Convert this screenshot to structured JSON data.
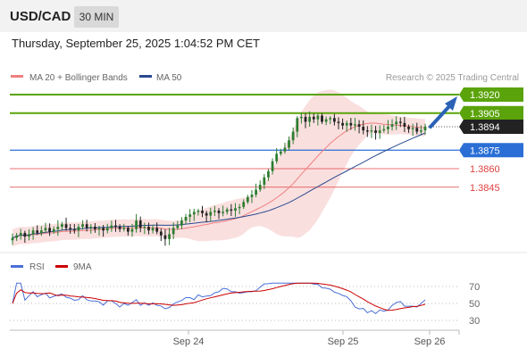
{
  "header": {
    "pair": "USD/CAD",
    "timeframe": "30 MIN"
  },
  "timestamp": "Thursday, September 25, 2025 1:04:52 PM CET",
  "legend": {
    "ma20": "MA 20 + Bollinger Bands",
    "ma50": "MA 50",
    "credit": "Research © 2025 Trading Central"
  },
  "colors": {
    "bull": "#2e7d32",
    "bear": "#222222",
    "ma20": "#f08080",
    "ma50": "#2a4a8f",
    "bb_fill": "#f9d9d9",
    "target": "#5aa30a",
    "support": "#2b6fd6",
    "resistance": "#e04040",
    "rsi": "#4a6fd6",
    "rsi_ma": "#cc0000"
  },
  "chart_data": [
    {
      "type": "candlestick",
      "title": "",
      "x_ticks": [
        "Sep 24",
        "Sep 25",
        "Sep 26"
      ],
      "y_range": [
        1.3775,
        1.3935
      ],
      "closes": [
        1.3804,
        1.3806,
        1.3808,
        1.3805,
        1.3807,
        1.381,
        1.3808,
        1.381,
        1.3812,
        1.3809,
        1.3811,
        1.3813,
        1.3815,
        1.3812,
        1.3811,
        1.381,
        1.3813,
        1.3815,
        1.3812,
        1.3813,
        1.3811,
        1.3812,
        1.381,
        1.3812,
        1.3814,
        1.3813,
        1.3811,
        1.3812,
        1.3809,
        1.3811,
        1.3818,
        1.3812,
        1.3813,
        1.381,
        1.3812,
        1.3809,
        1.3806,
        1.3803,
        1.3807,
        1.3812,
        1.3814,
        1.3818,
        1.3821,
        1.3823,
        1.3825,
        1.3826,
        1.3824,
        1.3822,
        1.3825,
        1.3826,
        1.3824,
        1.3825,
        1.3827,
        1.3826,
        1.3828,
        1.3829,
        1.3833,
        1.3837,
        1.3839,
        1.3843,
        1.3847,
        1.3853,
        1.3858,
        1.3866,
        1.3872,
        1.3874,
        1.3877,
        1.3883,
        1.389,
        1.3901,
        1.3902,
        1.3898,
        1.3902,
        1.39,
        1.3903,
        1.3898,
        1.39,
        1.3901,
        1.3898,
        1.3897,
        1.3895,
        1.3897,
        1.3895,
        1.3896,
        1.3894,
        1.3891,
        1.389,
        1.3891,
        1.3889,
        1.3891,
        1.3892,
        1.3894,
        1.3896,
        1.3898,
        1.3897,
        1.3894,
        1.3892,
        1.3893,
        1.389,
        1.3891,
        1.3894
      ],
      "ma20_end": 1.3892,
      "ma50_end": 1.3889,
      "current_price": "1.3894",
      "target_levels": [
        "1.3920",
        "1.3905"
      ],
      "support_level": "1.3875",
      "resistance_levels": [
        "1.3860",
        "1.3845"
      ],
      "forecast": "up"
    },
    {
      "type": "line",
      "series": [
        {
          "name": "RSI"
        },
        {
          "name": "9MA"
        }
      ],
      "y_ticks": [
        70,
        50,
        30
      ],
      "y_range": [
        20,
        80
      ],
      "x_ticks": [
        "Sep 24",
        "Sep 25",
        "Sep 26"
      ]
    }
  ]
}
